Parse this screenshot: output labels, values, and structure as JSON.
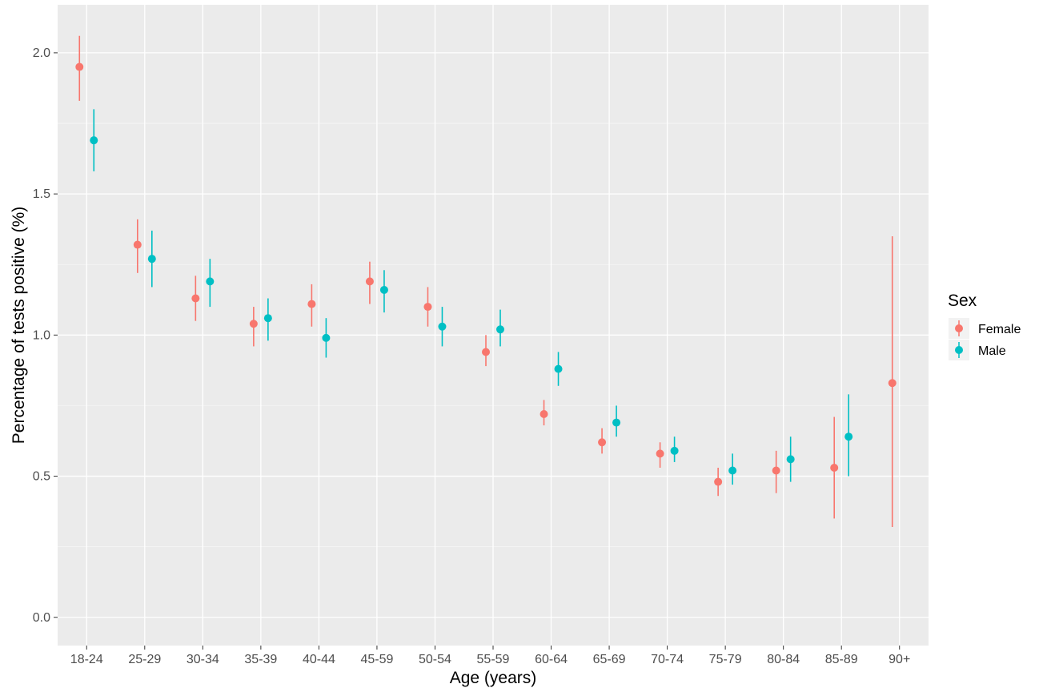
{
  "chart_data": {
    "type": "scatter",
    "xlabel": "Age (years)",
    "ylabel": "Percentage of tests positive (%)",
    "ylim": [
      -0.1,
      2.17
    ],
    "yticks": [
      "0.0",
      "0.5",
      "1.0",
      "1.5",
      "2.0"
    ],
    "grid": true,
    "legend_title": "Sex",
    "legend_position": "right",
    "categories": [
      "18-24",
      "25-29",
      "30-34",
      "35-39",
      "40-44",
      "45-59",
      "50-54",
      "55-59",
      "60-64",
      "65-69",
      "70-74",
      "75-79",
      "80-84",
      "85-89",
      "90+"
    ],
    "series": [
      {
        "name": "Female",
        "color": "#F8766D",
        "values": [
          1.95,
          1.32,
          1.13,
          1.04,
          1.11,
          1.19,
          1.1,
          0.94,
          0.72,
          0.62,
          0.58,
          0.48,
          0.52,
          0.53,
          0.83
        ],
        "lower": [
          1.83,
          1.22,
          1.05,
          0.96,
          1.03,
          1.11,
          1.03,
          0.89,
          0.68,
          0.58,
          0.53,
          0.43,
          0.44,
          0.35,
          0.32
        ],
        "upper": [
          2.06,
          1.41,
          1.21,
          1.1,
          1.18,
          1.26,
          1.17,
          1.0,
          0.77,
          0.67,
          0.62,
          0.53,
          0.59,
          0.71,
          1.35
        ]
      },
      {
        "name": "Male",
        "color": "#00BFC4",
        "values": [
          1.69,
          1.27,
          1.19,
          1.06,
          0.99,
          1.16,
          1.03,
          1.02,
          0.88,
          0.69,
          0.59,
          0.52,
          0.56,
          0.64,
          null
        ],
        "lower": [
          1.58,
          1.17,
          1.1,
          0.98,
          0.92,
          1.08,
          0.96,
          0.96,
          0.82,
          0.64,
          0.55,
          0.47,
          0.48,
          0.5,
          null
        ],
        "upper": [
          1.8,
          1.37,
          1.27,
          1.13,
          1.06,
          1.23,
          1.1,
          1.09,
          0.94,
          0.75,
          0.64,
          0.58,
          0.64,
          0.79,
          null
        ]
      }
    ]
  }
}
